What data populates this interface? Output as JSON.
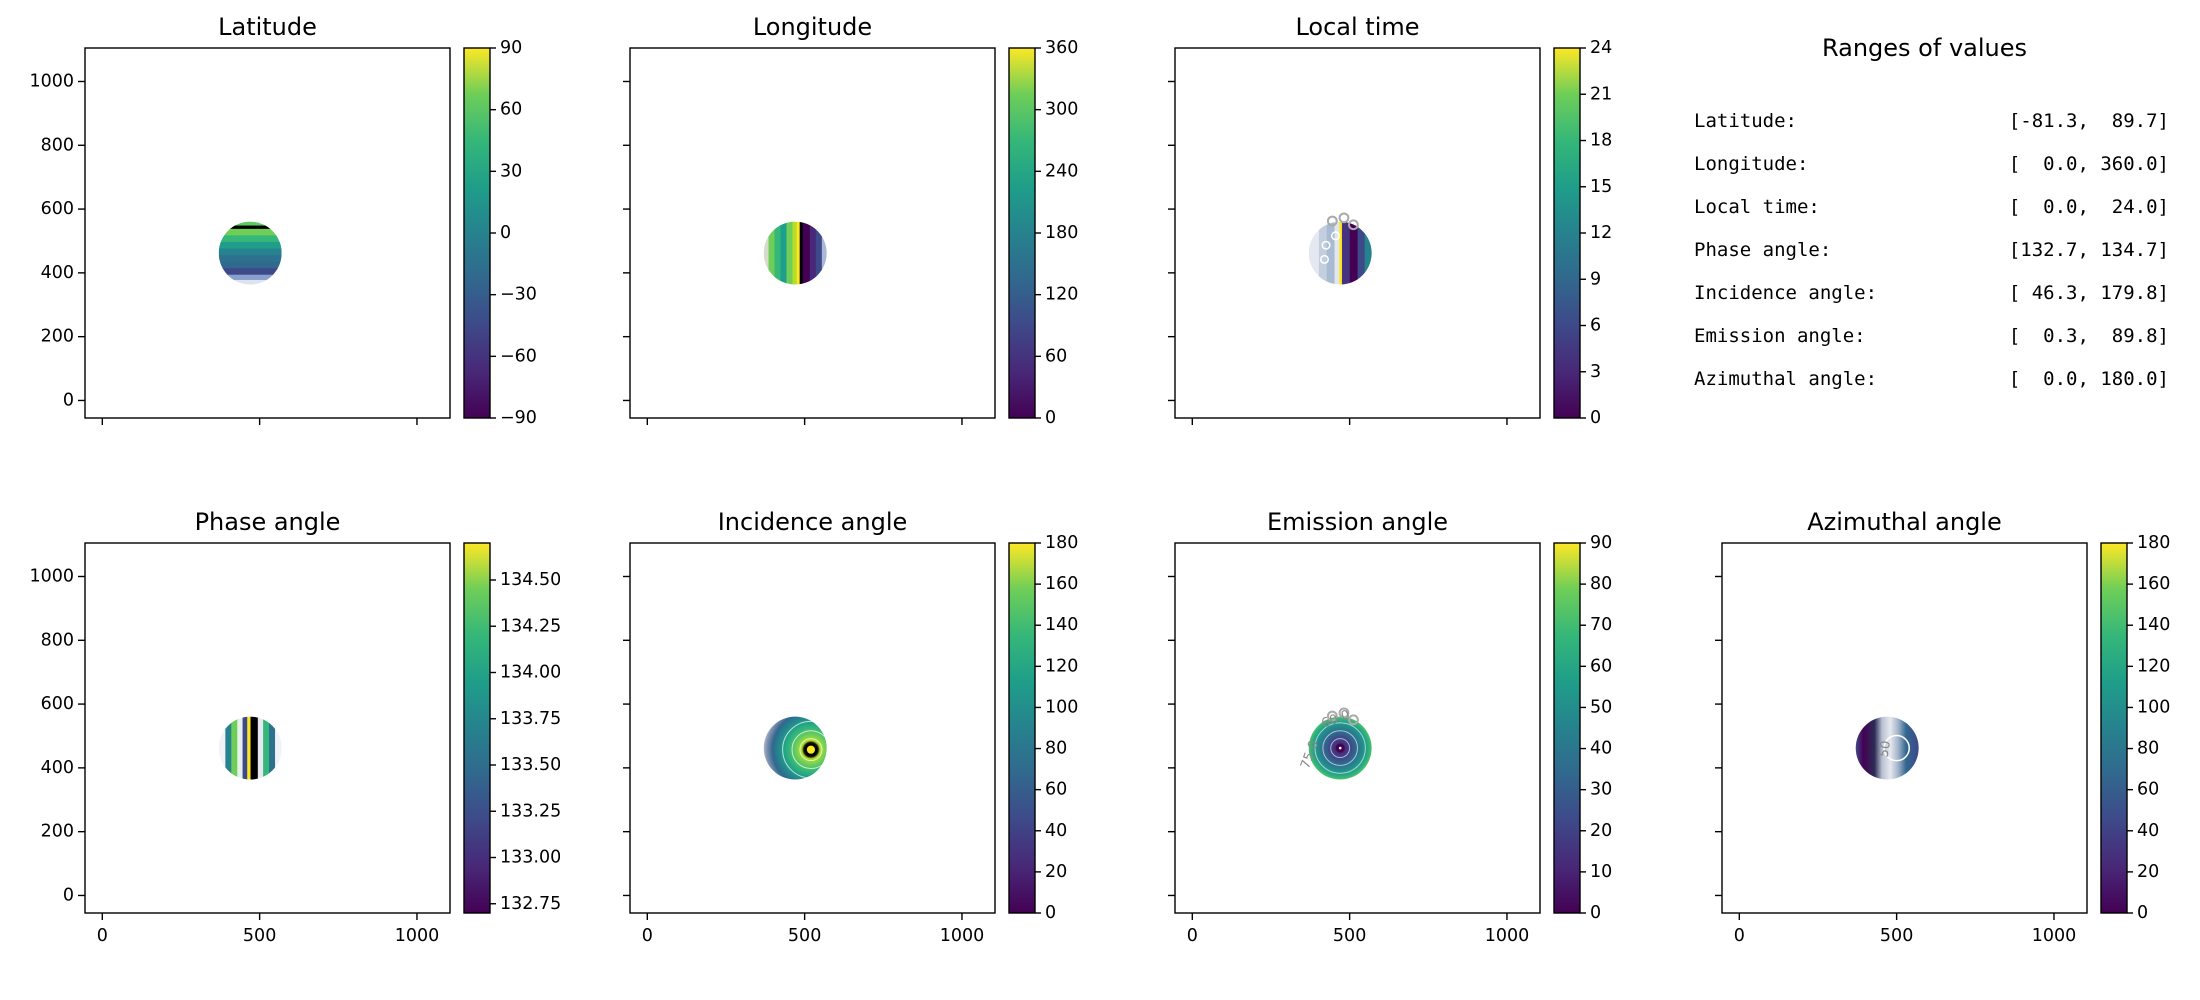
{
  "ranges_panel": {
    "title": "Ranges of values",
    "rows": [
      {
        "label": "Latitude:",
        "value": "[-81.3,  89.7]"
      },
      {
        "label": "Longitude:",
        "value": "[  0.0, 360.0]"
      },
      {
        "label": "Local time:",
        "value": "[  0.0,  24.0]"
      },
      {
        "label": "Phase angle:",
        "value": "[132.7, 134.7]"
      },
      {
        "label": "Incidence angle:",
        "value": "[ 46.3, 179.8]"
      },
      {
        "label": "Emission angle:",
        "value": "[  0.3,  89.8]"
      },
      {
        "label": "Azimuthal angle:",
        "value": "[  0.0, 180.0]"
      }
    ]
  },
  "colors": {
    "axis": "#000000",
    "contour_label": "#888888",
    "viridis": [
      "#440154",
      "#482878",
      "#3e4989",
      "#31688e",
      "#26828e",
      "#1f9e89",
      "#35b779",
      "#6ece58",
      "#fde725"
    ]
  },
  "chart_data": [
    {
      "type": "contour",
      "title": "Latitude",
      "xlim": [
        -55,
        1105
      ],
      "ylim": [
        -55,
        1105
      ],
      "xticks": [
        "0",
        "500",
        "1000"
      ],
      "yticks": [
        "0",
        "200",
        "400",
        "600",
        "800",
        "1000"
      ],
      "data_range": [
        -81.3,
        89.7
      ],
      "colorbar": {
        "colormap": "viridis",
        "range": [
          -90,
          90
        ],
        "tick_values": [
          90,
          60,
          30,
          0,
          -30,
          -60,
          -90
        ],
        "tick_labels": [
          "90",
          "60",
          "30",
          "0",
          "−30",
          "−60",
          "−90"
        ]
      },
      "disc": {
        "cx": 470,
        "cy": 462,
        "r": 100,
        "pattern": "hbands",
        "colors": [
          "#5ec962",
          "#000000",
          "#6ece58",
          "#35b779",
          "#1f9e89",
          "#26828e",
          "#2c728e",
          "#31688e",
          "#3e4989",
          "#8aa0cc",
          "#dde3ee"
        ],
        "widths": [
          0.6,
          0.5,
          1,
          1,
          1,
          1,
          1,
          1,
          1,
          0.8,
          0.7
        ],
        "extras": []
      }
    },
    {
      "type": "contour",
      "title": "Longitude",
      "xlim": [
        -55,
        1105
      ],
      "ylim": [
        -55,
        1105
      ],
      "xticks": [
        "0",
        "500",
        "1000"
      ],
      "yticks": [
        "0",
        "200",
        "400",
        "600",
        "800",
        "1000"
      ],
      "data_range": [
        0.0,
        360.0
      ],
      "colorbar": {
        "colormap": "viridis",
        "range": [
          0,
          360
        ],
        "tick_values": [
          360,
          300,
          240,
          180,
          120,
          60,
          0
        ],
        "tick_labels": [
          "360",
          "300",
          "240",
          "180",
          "120",
          "60",
          "0"
        ]
      },
      "disc": {
        "cx": 470,
        "cy": 462,
        "r": 100,
        "pattern": "vbands",
        "colors": [
          "#d5dcc9",
          "#6ece58",
          "#35b779",
          "#1f9e89",
          "#6ece58",
          "#b5de2b",
          "#fde725",
          "#000000",
          "#440154",
          "#482878",
          "#3e4989",
          "#aab7d9"
        ],
        "widths": [
          0.8,
          1,
          1,
          1,
          1,
          0.7,
          0.5,
          0.5,
          1.2,
          1,
          1,
          0.8
        ],
        "extras": []
      }
    },
    {
      "type": "contour",
      "title": "Local time",
      "xlim": [
        -55,
        1105
      ],
      "ylim": [
        -55,
        1105
      ],
      "xticks": [
        "0",
        "500",
        "1000"
      ],
      "yticks": [
        "0",
        "200",
        "400",
        "600",
        "800",
        "1000"
      ],
      "data_range": [
        0.0,
        24.0
      ],
      "colorbar": {
        "colormap": "viridis",
        "range": [
          0,
          24
        ],
        "tick_values": [
          24,
          21,
          18,
          15,
          12,
          9,
          6,
          3,
          0
        ],
        "tick_labels": [
          "24",
          "21",
          "18",
          "15",
          "12",
          "9",
          "6",
          "3",
          "0"
        ]
      },
      "disc": {
        "cx": 470,
        "cy": 462,
        "r": 100,
        "pattern": "vbands",
        "colors": [
          "#e4e9f1",
          "#c3cede",
          "#a9bbd2",
          "#e2e7ef",
          "#fde725",
          "#46327e",
          "#440154",
          "#3e4989",
          "#26828e"
        ],
        "widths": [
          1.3,
          1,
          1,
          0.6,
          0.35,
          1,
          1,
          0.9,
          0.9
        ],
        "extras": [
          "gray-circles-top",
          "white-circles"
        ]
      }
    },
    {
      "type": "contour",
      "title": "Phase angle",
      "xlim": [
        -55,
        1105
      ],
      "ylim": [
        -55,
        1105
      ],
      "xticks": [
        "0",
        "500",
        "1000"
      ],
      "yticks": [
        "0",
        "200",
        "400",
        "600",
        "800",
        "1000"
      ],
      "data_range": [
        132.7,
        134.7
      ],
      "colorbar": {
        "colormap": "viridis",
        "range": [
          132.7,
          134.7
        ],
        "tick_values": [
          134.5,
          134.25,
          134.0,
          133.75,
          133.5,
          133.25,
          133.0,
          132.75
        ],
        "tick_labels": [
          "134.50",
          "134.25",
          "134.00",
          "133.75",
          "133.50",
          "133.25",
          "133.00",
          "132.75"
        ]
      },
      "disc": {
        "cx": 470,
        "cy": 462,
        "r": 100,
        "pattern": "vbands",
        "colors": [
          "#f0f2f7",
          "#26828e",
          "#6ece58",
          "#e8f0ec",
          "#3e4989",
          "#fde725",
          "#000000",
          "#e8e8f2",
          "#35b779",
          "#2c728e",
          "#f0f2f7"
        ],
        "widths": [
          1,
          0.9,
          0.9,
          0.8,
          0.7,
          0.5,
          1.1,
          0.8,
          0.9,
          0.9,
          1
        ],
        "extras": []
      }
    },
    {
      "type": "contour",
      "title": "Incidence angle",
      "xlim": [
        -55,
        1105
      ],
      "ylim": [
        -55,
        1105
      ],
      "xticks": [
        "0",
        "500",
        "1000"
      ],
      "yticks": [
        "0",
        "200",
        "400",
        "600",
        "800",
        "1000"
      ],
      "data_range": [
        46.3,
        179.8
      ],
      "colorbar": {
        "colormap": "viridis",
        "range": [
          0,
          180
        ],
        "tick_values": [
          180,
          160,
          140,
          120,
          100,
          80,
          60,
          40,
          20,
          0
        ],
        "tick_labels": [
          "180",
          "160",
          "140",
          "120",
          "100",
          "80",
          "60",
          "40",
          "20",
          "0"
        ]
      },
      "disc": {
        "cx": 470,
        "cy": 462,
        "r": 100,
        "pattern": "rings-offset",
        "stops": [
          [
            0,
            "#fde725"
          ],
          [
            0.1,
            "#fde725"
          ],
          [
            0.13,
            "#000000"
          ],
          [
            0.17,
            "#b5de2b"
          ],
          [
            0.28,
            "#6ece58"
          ],
          [
            0.4,
            "#35b779"
          ],
          [
            0.52,
            "#1f9e89"
          ],
          [
            0.62,
            "#26828e"
          ],
          [
            0.72,
            "#31688e"
          ],
          [
            0.82,
            "#7d8fae"
          ],
          [
            0.92,
            "#c9cfdb"
          ],
          [
            1,
            "#e8eaf0"
          ]
        ],
        "extras": [
          "black-ring",
          "white-rings"
        ]
      }
    },
    {
      "type": "contour",
      "title": "Emission angle",
      "xlim": [
        -55,
        1105
      ],
      "ylim": [
        -55,
        1105
      ],
      "xticks": [
        "0",
        "500",
        "1000"
      ],
      "yticks": [
        "0",
        "200",
        "400",
        "600",
        "800",
        "1000"
      ],
      "data_range": [
        0.3,
        89.8
      ],
      "colorbar": {
        "colormap": "viridis",
        "range": [
          0,
          90
        ],
        "tick_values": [
          90,
          80,
          70,
          60,
          50,
          40,
          30,
          20,
          10,
          0
        ],
        "tick_labels": [
          "90",
          "80",
          "70",
          "60",
          "50",
          "40",
          "30",
          "20",
          "10",
          "0"
        ]
      },
      "disc": {
        "cx": 470,
        "cy": 462,
        "r": 100,
        "pattern": "rings-center",
        "stops": [
          [
            0,
            "#ffffff"
          ],
          [
            0.07,
            "#440154"
          ],
          [
            0.18,
            "#46327e"
          ],
          [
            0.32,
            "#3e4989"
          ],
          [
            0.48,
            "#31688e"
          ],
          [
            0.62,
            "#26828e"
          ],
          [
            0.78,
            "#1f9e89"
          ],
          [
            0.9,
            "#35b779"
          ],
          [
            1,
            "#6ece58"
          ]
        ],
        "labels": [
          {
            "text": "60.0",
            "dx": -0.1,
            "dy": -0.8,
            "rot": -20
          },
          {
            "text": "75.0",
            "dx": -0.85,
            "dy": 0.25,
            "rot": -70
          }
        ],
        "extras": [
          "gray-circles-top",
          "center-dot",
          "white-rings-center"
        ]
      }
    },
    {
      "type": "contour",
      "title": "Azimuthal angle",
      "xlim": [
        -55,
        1105
      ],
      "ylim": [
        -55,
        1105
      ],
      "xticks": [
        "0",
        "500",
        "1000"
      ],
      "yticks": [
        "0",
        "200",
        "400",
        "600",
        "800",
        "1000"
      ],
      "data_range": [
        0.0,
        180.0
      ],
      "colorbar": {
        "colormap": "viridis",
        "range": [
          0,
          180
        ],
        "tick_values": [
          180,
          160,
          140,
          120,
          100,
          80,
          60,
          40,
          20,
          0
        ],
        "tick_labels": [
          "180",
          "160",
          "140",
          "120",
          "100",
          "80",
          "60",
          "40",
          "20",
          "0"
        ]
      },
      "disc": {
        "cx": 470,
        "cy": 462,
        "r": 100,
        "pattern": "hgrad",
        "stops": [
          [
            0,
            "#3e4989"
          ],
          [
            0.12,
            "#440154"
          ],
          [
            0.3,
            "#2c2c54"
          ],
          [
            0.42,
            "#b9c2d2"
          ],
          [
            0.55,
            "#e6e8ee"
          ],
          [
            0.68,
            "#9fb0c8"
          ],
          [
            0.8,
            "#31688e"
          ],
          [
            1,
            "#3e4989"
          ]
        ],
        "labels": [
          {
            "text": "50",
            "dx": 0.05,
            "dy": 0.05,
            "rot": -80
          }
        ],
        "extras": [
          "white-circle-right"
        ]
      }
    }
  ]
}
